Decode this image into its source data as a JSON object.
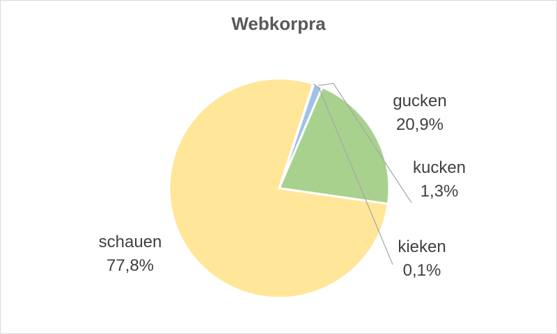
{
  "chart_data": {
    "type": "pie",
    "title": "Webkorpra",
    "slices": [
      {
        "label": "schauen",
        "value": 77.8,
        "value_text": "77,8%",
        "color": "#ffe699"
      },
      {
        "label": "gucken",
        "value": 20.9,
        "value_text": "20,9%",
        "color": "#a9d18e"
      },
      {
        "label": "kucken",
        "value": 1.3,
        "value_text": "1,3%",
        "color": "#9dc3e6"
      },
      {
        "label": "kieken",
        "value": 0.1,
        "value_text": "0,1%",
        "color": "#f4b183"
      }
    ],
    "legend": "none",
    "data_labels": "outside"
  }
}
